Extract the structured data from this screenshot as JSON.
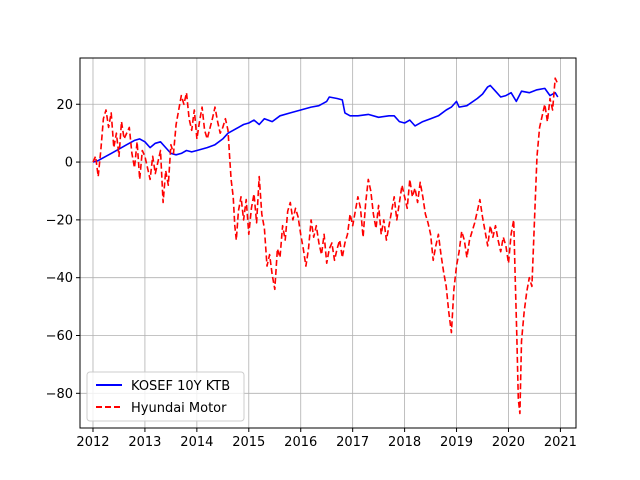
{
  "chart_data": {
    "type": "line",
    "title": "",
    "xlabel": "",
    "ylabel": "",
    "xlim": [
      2011.75,
      2021.3
    ],
    "ylim": [
      -92,
      36
    ],
    "xticks": [
      2012,
      2013,
      2014,
      2015,
      2016,
      2017,
      2018,
      2019,
      2020,
      2021
    ],
    "xtick_labels": [
      "2012",
      "2013",
      "2014",
      "2015",
      "2016",
      "2017",
      "2018",
      "2019",
      "2020",
      "2021"
    ],
    "yticks": [
      -80,
      -60,
      -40,
      -20,
      0,
      20
    ],
    "ytick_labels": [
      "−80",
      "−60",
      "−40",
      "−20",
      "0",
      "20"
    ],
    "grid": true,
    "legend_position": "lower-left",
    "series": [
      {
        "name": "KOSEF 10Y KTB",
        "color": "#0000ff",
        "style": "solid",
        "points": [
          [
            2012.0,
            0
          ],
          [
            2012.1,
            0.5
          ],
          [
            2012.2,
            1.5
          ],
          [
            2012.35,
            3
          ],
          [
            2012.5,
            4.5
          ],
          [
            2012.65,
            6
          ],
          [
            2012.8,
            7.5
          ],
          [
            2012.9,
            8
          ],
          [
            2013.0,
            7
          ],
          [
            2013.1,
            5
          ],
          [
            2013.2,
            6.5
          ],
          [
            2013.3,
            7
          ],
          [
            2013.4,
            5
          ],
          [
            2013.5,
            3
          ],
          [
            2013.6,
            2.5
          ],
          [
            2013.7,
            3
          ],
          [
            2013.8,
            4
          ],
          [
            2013.9,
            3.5
          ],
          [
            2014.0,
            4
          ],
          [
            2014.2,
            5
          ],
          [
            2014.35,
            6
          ],
          [
            2014.5,
            8
          ],
          [
            2014.6,
            10
          ],
          [
            2014.7,
            11
          ],
          [
            2014.8,
            12
          ],
          [
            2014.9,
            13
          ],
          [
            2015.0,
            13.5
          ],
          [
            2015.1,
            14.5
          ],
          [
            2015.2,
            13
          ],
          [
            2015.3,
            15
          ],
          [
            2015.45,
            14
          ],
          [
            2015.6,
            16
          ],
          [
            2015.8,
            17
          ],
          [
            2016.0,
            18
          ],
          [
            2016.2,
            19
          ],
          [
            2016.35,
            19.5
          ],
          [
            2016.5,
            21
          ],
          [
            2016.55,
            22.5
          ],
          [
            2016.7,
            22
          ],
          [
            2016.8,
            21.5
          ],
          [
            2016.85,
            17
          ],
          [
            2016.95,
            16
          ],
          [
            2017.1,
            16
          ],
          [
            2017.3,
            16.5
          ],
          [
            2017.5,
            15.5
          ],
          [
            2017.7,
            16
          ],
          [
            2017.8,
            16
          ],
          [
            2017.9,
            14
          ],
          [
            2018.0,
            13.5
          ],
          [
            2018.1,
            14.5
          ],
          [
            2018.2,
            12.5
          ],
          [
            2018.35,
            14
          ],
          [
            2018.5,
            15
          ],
          [
            2018.65,
            16
          ],
          [
            2018.8,
            18
          ],
          [
            2018.9,
            19
          ],
          [
            2019.0,
            21
          ],
          [
            2019.05,
            19
          ],
          [
            2019.2,
            19.5
          ],
          [
            2019.4,
            22
          ],
          [
            2019.5,
            23.5
          ],
          [
            2019.6,
            26
          ],
          [
            2019.65,
            26.5
          ],
          [
            2019.75,
            24.5
          ],
          [
            2019.85,
            22.5
          ],
          [
            2019.95,
            23
          ],
          [
            2020.05,
            24
          ],
          [
            2020.15,
            21
          ],
          [
            2020.25,
            24.5
          ],
          [
            2020.4,
            24
          ],
          [
            2020.55,
            25
          ],
          [
            2020.7,
            25.5
          ],
          [
            2020.8,
            23
          ],
          [
            2020.9,
            24
          ],
          [
            2020.95,
            22.5
          ]
        ]
      },
      {
        "name": "Hyundai Motor",
        "color": "#ff0000",
        "style": "dashed",
        "points": [
          [
            2012.0,
            0
          ],
          [
            2012.05,
            2
          ],
          [
            2012.1,
            -5
          ],
          [
            2012.15,
            4
          ],
          [
            2012.2,
            15
          ],
          [
            2012.25,
            18
          ],
          [
            2012.3,
            12
          ],
          [
            2012.35,
            17
          ],
          [
            2012.4,
            5
          ],
          [
            2012.45,
            10
          ],
          [
            2012.5,
            2
          ],
          [
            2012.55,
            14
          ],
          [
            2012.6,
            8
          ],
          [
            2012.7,
            12
          ],
          [
            2012.75,
            3
          ],
          [
            2012.8,
            -2
          ],
          [
            2012.85,
            7
          ],
          [
            2012.9,
            -6
          ],
          [
            2012.95,
            4
          ],
          [
            2013.0,
            2
          ],
          [
            2013.05,
            -2
          ],
          [
            2013.1,
            -6
          ],
          [
            2013.15,
            2
          ],
          [
            2013.2,
            -4
          ],
          [
            2013.3,
            4
          ],
          [
            2013.35,
            -14
          ],
          [
            2013.4,
            -3
          ],
          [
            2013.45,
            -8
          ],
          [
            2013.5,
            6
          ],
          [
            2013.55,
            3
          ],
          [
            2013.6,
            13
          ],
          [
            2013.65,
            18
          ],
          [
            2013.7,
            23
          ],
          [
            2013.75,
            20
          ],
          [
            2013.8,
            24
          ],
          [
            2013.85,
            15
          ],
          [
            2013.9,
            11
          ],
          [
            2013.95,
            18
          ],
          [
            2014.0,
            8
          ],
          [
            2014.05,
            14
          ],
          [
            2014.1,
            19
          ],
          [
            2014.15,
            11
          ],
          [
            2014.2,
            8
          ],
          [
            2014.3,
            15
          ],
          [
            2014.35,
            19
          ],
          [
            2014.4,
            14
          ],
          [
            2014.45,
            10
          ],
          [
            2014.5,
            12
          ],
          [
            2014.55,
            15
          ],
          [
            2014.6,
            11
          ],
          [
            2014.63,
            2
          ],
          [
            2014.66,
            -6
          ],
          [
            2014.7,
            -12
          ],
          [
            2014.73,
            -22
          ],
          [
            2014.76,
            -27
          ],
          [
            2014.8,
            -17
          ],
          [
            2014.85,
            -12
          ],
          [
            2014.9,
            -20
          ],
          [
            2014.95,
            -13
          ],
          [
            2015.0,
            -25
          ],
          [
            2015.05,
            -16
          ],
          [
            2015.1,
            -11
          ],
          [
            2015.15,
            -21
          ],
          [
            2015.2,
            -5
          ],
          [
            2015.25,
            -18
          ],
          [
            2015.3,
            -23
          ],
          [
            2015.35,
            -36
          ],
          [
            2015.4,
            -32
          ],
          [
            2015.45,
            -39
          ],
          [
            2015.5,
            -44
          ],
          [
            2015.55,
            -30
          ],
          [
            2015.6,
            -33
          ],
          [
            2015.65,
            -22
          ],
          [
            2015.7,
            -27
          ],
          [
            2015.75,
            -17
          ],
          [
            2015.8,
            -14
          ],
          [
            2015.85,
            -20
          ],
          [
            2015.9,
            -16
          ],
          [
            2015.95,
            -19
          ],
          [
            2016.0,
            -25
          ],
          [
            2016.05,
            -30
          ],
          [
            2016.1,
            -36
          ],
          [
            2016.15,
            -30
          ],
          [
            2016.2,
            -20
          ],
          [
            2016.25,
            -26
          ],
          [
            2016.3,
            -22
          ],
          [
            2016.35,
            -28
          ],
          [
            2016.4,
            -32
          ],
          [
            2016.45,
            -25
          ],
          [
            2016.5,
            -35
          ],
          [
            2016.55,
            -30
          ],
          [
            2016.6,
            -28
          ],
          [
            2016.65,
            -34
          ],
          [
            2016.7,
            -30
          ],
          [
            2016.75,
            -27
          ],
          [
            2016.8,
            -33
          ],
          [
            2016.85,
            -28
          ],
          [
            2016.9,
            -25
          ],
          [
            2016.95,
            -18
          ],
          [
            2017.0,
            -22
          ],
          [
            2017.05,
            -17
          ],
          [
            2017.1,
            -12
          ],
          [
            2017.15,
            -16
          ],
          [
            2017.2,
            -26
          ],
          [
            2017.25,
            -14
          ],
          [
            2017.3,
            -6
          ],
          [
            2017.35,
            -10
          ],
          [
            2017.4,
            -18
          ],
          [
            2017.45,
            -23
          ],
          [
            2017.5,
            -15
          ],
          [
            2017.55,
            -25
          ],
          [
            2017.6,
            -20
          ],
          [
            2017.65,
            -27
          ],
          [
            2017.7,
            -22
          ],
          [
            2017.75,
            -17
          ],
          [
            2017.8,
            -12
          ],
          [
            2017.85,
            -20
          ],
          [
            2017.9,
            -14
          ],
          [
            2017.95,
            -8
          ],
          [
            2018.0,
            -12
          ],
          [
            2018.05,
            -16
          ],
          [
            2018.1,
            -6
          ],
          [
            2018.15,
            -12
          ],
          [
            2018.2,
            -9
          ],
          [
            2018.25,
            -14
          ],
          [
            2018.3,
            -7
          ],
          [
            2018.35,
            -12
          ],
          [
            2018.4,
            -18
          ],
          [
            2018.45,
            -21
          ],
          [
            2018.5,
            -25
          ],
          [
            2018.55,
            -34
          ],
          [
            2018.6,
            -29
          ],
          [
            2018.65,
            -25
          ],
          [
            2018.7,
            -32
          ],
          [
            2018.75,
            -38
          ],
          [
            2018.8,
            -43
          ],
          [
            2018.85,
            -52
          ],
          [
            2018.9,
            -59
          ],
          [
            2018.95,
            -44
          ],
          [
            2019.0,
            -36
          ],
          [
            2019.05,
            -31
          ],
          [
            2019.1,
            -24
          ],
          [
            2019.15,
            -27
          ],
          [
            2019.2,
            -33
          ],
          [
            2019.25,
            -27
          ],
          [
            2019.3,
            -24
          ],
          [
            2019.35,
            -21
          ],
          [
            2019.4,
            -17
          ],
          [
            2019.45,
            -13
          ],
          [
            2019.5,
            -19
          ],
          [
            2019.55,
            -24
          ],
          [
            2019.6,
            -29
          ],
          [
            2019.65,
            -22
          ],
          [
            2019.7,
            -26
          ],
          [
            2019.75,
            -22
          ],
          [
            2019.8,
            -27
          ],
          [
            2019.85,
            -31
          ],
          [
            2019.9,
            -26
          ],
          [
            2019.95,
            -29
          ],
          [
            2020.0,
            -35
          ],
          [
            2020.05,
            -25
          ],
          [
            2020.1,
            -20
          ],
          [
            2020.13,
            -40
          ],
          [
            2020.16,
            -60
          ],
          [
            2020.19,
            -82
          ],
          [
            2020.22,
            -87
          ],
          [
            2020.25,
            -62
          ],
          [
            2020.3,
            -52
          ],
          [
            2020.35,
            -45
          ],
          [
            2020.4,
            -40
          ],
          [
            2020.45,
            -43
          ],
          [
            2020.5,
            -20
          ],
          [
            2020.55,
            2
          ],
          [
            2020.6,
            12
          ],
          [
            2020.65,
            16
          ],
          [
            2020.7,
            20
          ],
          [
            2020.75,
            14
          ],
          [
            2020.8,
            22
          ],
          [
            2020.85,
            18
          ],
          [
            2020.9,
            29
          ],
          [
            2020.95,
            27
          ]
        ]
      }
    ]
  }
}
